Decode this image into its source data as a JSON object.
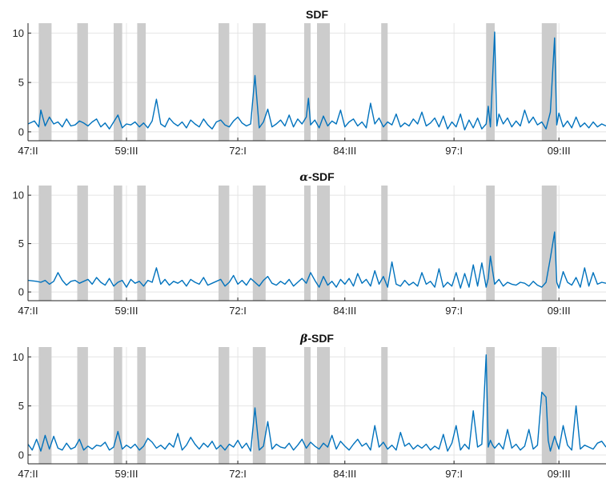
{
  "chart_data": [
    {
      "type": "line",
      "title": "SDF",
      "title_math": "",
      "yticks": [
        0,
        5,
        10
      ],
      "ylim": [
        -0.9,
        11
      ],
      "xlim": [
        0,
        270
      ],
      "xtick_labels": [
        "47:II",
        "59:III",
        "72:I",
        "84:III",
        "97:I",
        "09:III"
      ],
      "xtick_values": [
        0,
        46,
        98,
        148,
        199,
        248
      ],
      "grid": true,
      "shaded_intervals": [
        [
          5,
          11
        ],
        [
          23,
          28
        ],
        [
          40,
          44
        ],
        [
          51,
          55
        ],
        [
          89,
          94
        ],
        [
          105,
          111
        ],
        [
          129,
          132
        ],
        [
          135,
          141
        ],
        [
          165,
          168
        ],
        [
          214,
          218
        ],
        [
          240,
          247
        ]
      ],
      "series": [
        {
          "color": "#0072bd",
          "x": [
            0,
            3,
            5,
            6,
            8,
            10,
            12,
            14,
            16,
            18,
            20,
            22,
            24,
            26,
            28,
            30,
            32,
            34,
            36,
            38,
            40,
            42,
            44,
            46,
            48,
            50,
            52,
            54,
            56,
            58,
            60,
            62,
            64,
            66,
            68,
            70,
            72,
            74,
            76,
            78,
            80,
            82,
            84,
            86,
            88,
            90,
            92,
            94,
            96,
            98,
            100,
            102,
            104,
            106,
            108,
            110,
            112,
            114,
            116,
            118,
            120,
            122,
            124,
            126,
            128,
            130,
            131,
            132,
            134,
            136,
            138,
            140,
            142,
            144,
            146,
            148,
            150,
            152,
            154,
            156,
            158,
            160,
            162,
            164,
            166,
            168,
            170,
            172,
            174,
            176,
            178,
            180,
            182,
            184,
            186,
            188,
            190,
            192,
            194,
            196,
            198,
            200,
            202,
            204,
            206,
            208,
            210,
            212,
            214,
            215,
            216,
            218,
            219,
            220,
            222,
            224,
            226,
            228,
            230,
            232,
            234,
            236,
            238,
            240,
            242,
            244,
            246,
            247,
            248,
            250,
            252,
            254,
            256,
            258,
            260,
            262,
            264,
            266,
            268,
            270
          ],
          "y": [
            0.8,
            1.1,
            0.5,
            2.2,
            0.6,
            1.5,
            0.8,
            1.0,
            0.5,
            1.3,
            0.6,
            0.7,
            1.1,
            0.9,
            0.6,
            1.0,
            1.3,
            0.5,
            0.9,
            0.3,
            1.0,
            1.7,
            0.4,
            0.8,
            0.7,
            1.0,
            0.5,
            0.9,
            0.4,
            1.1,
            3.3,
            0.8,
            0.5,
            1.4,
            0.9,
            0.6,
            1.0,
            0.4,
            1.2,
            0.8,
            0.5,
            1.3,
            0.7,
            0.3,
            1.0,
            1.2,
            0.7,
            0.5,
            1.1,
            1.5,
            0.9,
            0.6,
            0.8,
            5.7,
            0.4,
            1.0,
            2.3,
            0.5,
            0.8,
            1.2,
            0.6,
            1.7,
            0.5,
            1.3,
            0.8,
            1.5,
            3.4,
            0.7,
            1.2,
            0.4,
            1.6,
            0.6,
            1.1,
            0.8,
            2.2,
            0.5,
            1.0,
            1.3,
            0.6,
            1.0,
            0.4,
            2.9,
            0.8,
            1.4,
            0.5,
            1.0,
            0.7,
            1.8,
            0.5,
            0.9,
            0.6,
            1.3,
            0.8,
            2.0,
            0.6,
            0.9,
            1.4,
            0.5,
            1.6,
            0.3,
            1.0,
            0.5,
            1.8,
            0.2,
            1.2,
            0.4,
            1.4,
            0.3,
            0.8,
            2.6,
            0.5,
            10.1,
            0.6,
            1.8,
            0.8,
            1.4,
            0.5,
            1.1,
            0.6,
            2.2,
            0.9,
            1.5,
            0.7,
            1.0,
            0.3,
            2.0,
            9.5,
            0.7,
            1.9,
            0.5,
            1.1,
            0.4,
            1.5,
            0.5,
            0.9,
            0.4,
            1.0,
            0.5,
            0.8,
            0.6
          ]
        }
      ]
    },
    {
      "type": "line",
      "title": "-SDF",
      "title_math": "α",
      "yticks": [
        0,
        5,
        10
      ],
      "ylim": [
        -0.9,
        11
      ],
      "xlim": [
        0,
        270
      ],
      "xtick_labels": [
        "47:II",
        "59:III",
        "72:I",
        "84:III",
        "97:I",
        "09:III"
      ],
      "xtick_values": [
        0,
        46,
        98,
        148,
        199,
        248
      ],
      "grid": true,
      "shaded_intervals": [
        [
          5,
          11
        ],
        [
          23,
          28
        ],
        [
          40,
          44
        ],
        [
          51,
          55
        ],
        [
          89,
          94
        ],
        [
          105,
          111
        ],
        [
          129,
          132
        ],
        [
          135,
          141
        ],
        [
          165,
          168
        ],
        [
          214,
          218
        ],
        [
          240,
          247
        ]
      ],
      "series": [
        {
          "color": "#0072bd",
          "x": [
            0,
            4,
            6,
            8,
            10,
            12,
            14,
            16,
            18,
            20,
            22,
            24,
            26,
            28,
            30,
            32,
            34,
            36,
            38,
            40,
            42,
            44,
            46,
            48,
            50,
            52,
            54,
            56,
            58,
            60,
            62,
            64,
            66,
            68,
            70,
            72,
            74,
            76,
            78,
            80,
            82,
            84,
            86,
            88,
            90,
            92,
            94,
            96,
            98,
            100,
            102,
            104,
            106,
            108,
            110,
            112,
            114,
            116,
            118,
            120,
            122,
            124,
            126,
            128,
            130,
            132,
            134,
            136,
            138,
            140,
            142,
            144,
            146,
            148,
            150,
            152,
            154,
            156,
            158,
            160,
            162,
            164,
            166,
            168,
            170,
            172,
            174,
            176,
            178,
            180,
            182,
            184,
            186,
            188,
            190,
            192,
            194,
            196,
            198,
            200,
            202,
            204,
            206,
            208,
            210,
            212,
            214,
            215,
            216,
            218,
            220,
            222,
            224,
            226,
            228,
            230,
            232,
            234,
            236,
            238,
            240,
            242,
            244,
            246,
            247,
            248,
            250,
            252,
            254,
            256,
            258,
            260,
            262,
            264,
            266,
            268,
            270
          ],
          "y": [
            1.2,
            1.1,
            1.0,
            1.2,
            0.8,
            1.1,
            2.0,
            1.2,
            0.7,
            1.1,
            1.2,
            0.9,
            1.1,
            1.3,
            0.8,
            1.5,
            1.0,
            0.7,
            1.4,
            0.6,
            1.0,
            1.2,
            0.5,
            1.3,
            0.9,
            1.1,
            0.6,
            1.2,
            1.0,
            2.5,
            0.8,
            1.3,
            0.7,
            1.1,
            0.9,
            1.2,
            0.6,
            1.3,
            1.0,
            0.8,
            1.5,
            0.7,
            0.9,
            1.1,
            1.3,
            0.6,
            1.0,
            1.7,
            0.8,
            1.2,
            0.7,
            1.4,
            1.0,
            0.6,
            1.2,
            1.6,
            0.9,
            0.7,
            1.1,
            0.8,
            1.3,
            0.6,
            1.0,
            1.4,
            0.9,
            2.0,
            1.2,
            0.5,
            1.6,
            0.7,
            1.1,
            0.5,
            1.3,
            0.8,
            1.4,
            0.6,
            1.9,
            0.9,
            1.3,
            0.6,
            2.2,
            0.8,
            1.6,
            0.5,
            3.1,
            0.8,
            0.6,
            1.2,
            0.7,
            1.0,
            0.6,
            2.0,
            0.8,
            1.1,
            0.5,
            2.4,
            0.5,
            1.0,
            0.6,
            2.0,
            0.4,
            1.9,
            0.5,
            2.8,
            0.6,
            3.0,
            0.5,
            1.4,
            3.7,
            0.8,
            1.3,
            0.6,
            1.0,
            0.8,
            0.7,
            1.0,
            0.9,
            0.6,
            1.1,
            0.7,
            0.5,
            1.0,
            3.5,
            6.2,
            1.0,
            0.4,
            2.1,
            1.0,
            0.7,
            1.5,
            0.5,
            2.5,
            0.6,
            2.0,
            0.8,
            1.0,
            0.9
          ]
        }
      ]
    },
    {
      "type": "line",
      "title": "-SDF",
      "title_math": "β",
      "yticks": [
        0,
        5,
        10
      ],
      "ylim": [
        -0.9,
        11
      ],
      "xlim": [
        0,
        270
      ],
      "xtick_labels": [
        "47:II",
        "59:III",
        "72:I",
        "84:III",
        "97:I",
        "09:III"
      ],
      "xtick_values": [
        0,
        46,
        98,
        148,
        199,
        248
      ],
      "grid": true,
      "shaded_intervals": [
        [
          5,
          11
        ],
        [
          23,
          28
        ],
        [
          40,
          44
        ],
        [
          51,
          55
        ],
        [
          89,
          94
        ],
        [
          105,
          111
        ],
        [
          129,
          132
        ],
        [
          135,
          141
        ],
        [
          165,
          168
        ],
        [
          214,
          218
        ],
        [
          240,
          247
        ]
      ],
      "series": [
        {
          "color": "#0072bd",
          "x": [
            0,
            2,
            4,
            6,
            8,
            10,
            12,
            14,
            16,
            18,
            20,
            22,
            24,
            26,
            28,
            30,
            32,
            34,
            36,
            38,
            40,
            42,
            44,
            46,
            48,
            50,
            52,
            54,
            56,
            58,
            60,
            62,
            64,
            66,
            68,
            70,
            72,
            74,
            76,
            78,
            80,
            82,
            84,
            86,
            88,
            90,
            92,
            94,
            96,
            98,
            100,
            102,
            104,
            106,
            108,
            110,
            112,
            114,
            116,
            118,
            120,
            122,
            124,
            126,
            128,
            130,
            132,
            134,
            136,
            138,
            140,
            142,
            144,
            146,
            148,
            150,
            152,
            154,
            156,
            158,
            160,
            162,
            164,
            166,
            168,
            170,
            172,
            174,
            176,
            178,
            180,
            182,
            184,
            186,
            188,
            190,
            192,
            194,
            196,
            198,
            200,
            202,
            204,
            206,
            208,
            210,
            212,
            214,
            215,
            216,
            217,
            218,
            220,
            222,
            224,
            226,
            228,
            230,
            232,
            234,
            236,
            238,
            240,
            242,
            243,
            244,
            246,
            248,
            250,
            252,
            254,
            256,
            258,
            260,
            262,
            264,
            266,
            268,
            270
          ],
          "y": [
            1.1,
            0.5,
            1.6,
            0.4,
            2.0,
            0.6,
            1.9,
            0.7,
            0.5,
            1.2,
            0.6,
            0.8,
            1.6,
            0.5,
            0.9,
            0.6,
            1.0,
            0.9,
            1.3,
            0.5,
            0.8,
            2.4,
            0.6,
            1.0,
            0.7,
            1.1,
            0.5,
            0.9,
            1.7,
            1.3,
            0.7,
            1.0,
            0.6,
            1.2,
            0.8,
            2.2,
            0.5,
            1.0,
            1.8,
            1.1,
            0.6,
            1.2,
            0.8,
            1.4,
            0.6,
            1.0,
            0.5,
            1.1,
            0.8,
            1.5,
            0.7,
            1.2,
            0.4,
            4.8,
            0.5,
            0.9,
            3.4,
            0.6,
            1.1,
            0.8,
            0.7,
            1.2,
            0.5,
            1.0,
            1.6,
            0.7,
            1.3,
            0.9,
            0.6,
            1.2,
            0.8,
            2.0,
            0.6,
            1.4,
            0.9,
            0.5,
            1.1,
            1.6,
            0.9,
            1.2,
            0.5,
            3.0,
            0.8,
            1.3,
            0.6,
            1.0,
            0.5,
            2.3,
            0.9,
            1.2,
            0.6,
            1.0,
            0.7,
            1.1,
            0.5,
            0.9,
            0.6,
            2.1,
            0.4,
            1.2,
            3.0,
            0.5,
            1.1,
            0.6,
            4.5,
            0.8,
            1.1,
            10.2,
            0.8,
            1.5,
            1.0,
            0.7,
            1.2,
            0.6,
            2.6,
            0.7,
            1.1,
            0.5,
            0.9,
            2.6,
            0.6,
            1.0,
            6.4,
            5.9,
            1.5,
            0.4,
            1.9,
            0.6,
            3.0,
            1.0,
            0.5,
            5.0,
            0.6,
            1.0,
            0.8,
            0.6,
            1.2,
            1.4,
            0.8
          ]
        }
      ]
    }
  ]
}
